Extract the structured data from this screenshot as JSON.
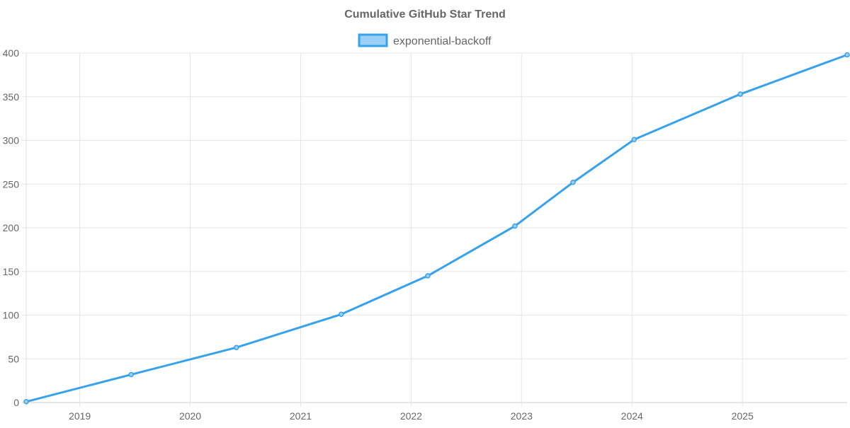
{
  "chart_data": {
    "type": "line",
    "title": "Cumulative GitHub Star Trend",
    "xlabel": "",
    "ylabel": "",
    "legend": {
      "placement": "top",
      "entries": [
        "exponential-backoff"
      ]
    },
    "grid": true,
    "x_ticks": [
      "2019",
      "2020",
      "2021",
      "2022",
      "2023",
      "2024",
      "2025"
    ],
    "y_ticks": [
      "0",
      "50",
      "100",
      "150",
      "200",
      "250",
      "300",
      "350",
      "400"
    ],
    "ylim": [
      0,
      400
    ],
    "xlim": [
      "2018-07-08",
      "2025-12-13"
    ],
    "series": [
      {
        "name": "exponential-backoff",
        "color": "#36a2eb",
        "fill_color": "#9ad0f5",
        "x": [
          "2018-07-08",
          "2019-06-20",
          "2020-06-02",
          "2021-05-15",
          "2022-02-25",
          "2022-12-10",
          "2023-06-20",
          "2024-01-08",
          "2024-12-25",
          "2025-12-13"
        ],
        "values": [
          1,
          32,
          63,
          101,
          145,
          202,
          252,
          301,
          353,
          398
        ]
      }
    ]
  }
}
